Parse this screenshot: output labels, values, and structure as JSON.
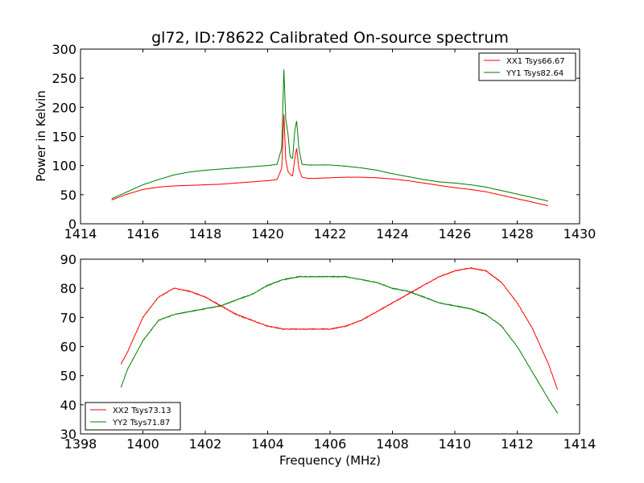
{
  "chart_data": [
    {
      "type": "line",
      "title": "gl72, ID:78622 Calibrated On-source spectrum",
      "xlabel": "",
      "ylabel": "Power in Kelvin",
      "xlim": [
        1414,
        1430
      ],
      "ylim": [
        0,
        300
      ],
      "xticks": [
        "1414",
        "1416",
        "1418",
        "1420",
        "1422",
        "1424",
        "1426",
        "1428",
        "1430"
      ],
      "yticks": [
        "0",
        "50",
        "100",
        "150",
        "200",
        "250",
        "300"
      ],
      "grid": false,
      "legend_position": "top-right",
      "series": [
        {
          "name": "XX1 Tsys66.67",
          "color": "#ff0000",
          "x": [
            1415.0,
            1415.5,
            1416.0,
            1416.5,
            1417.0,
            1417.5,
            1418.0,
            1418.5,
            1419.0,
            1419.5,
            1420.0,
            1420.3,
            1420.45,
            1420.52,
            1420.58,
            1420.65,
            1420.72,
            1420.8,
            1420.87,
            1420.93,
            1421.0,
            1421.1,
            1421.3,
            1421.5,
            1422.0,
            1422.5,
            1423.0,
            1423.5,
            1424.0,
            1424.5,
            1425.0,
            1425.5,
            1426.0,
            1426.5,
            1427.0,
            1427.5,
            1428.0,
            1428.5,
            1429.0
          ],
          "values": [
            41,
            51,
            59,
            63,
            65,
            66,
            67,
            68,
            70,
            72,
            74,
            76,
            95,
            188,
            110,
            90,
            85,
            82,
            112,
            130,
            95,
            80,
            78,
            78,
            79,
            80,
            80,
            79,
            77,
            74,
            70,
            66,
            62,
            59,
            55,
            49,
            43,
            37,
            31
          ]
        },
        {
          "name": "YY1 Tsys82.64",
          "color": "#007f00",
          "x": [
            1415.0,
            1415.5,
            1416.0,
            1416.5,
            1417.0,
            1417.5,
            1418.0,
            1418.5,
            1419.0,
            1419.5,
            1420.0,
            1420.3,
            1420.45,
            1420.52,
            1420.58,
            1420.65,
            1420.72,
            1420.8,
            1420.87,
            1420.93,
            1421.0,
            1421.1,
            1421.3,
            1421.5,
            1422.0,
            1422.5,
            1423.0,
            1423.5,
            1424.0,
            1424.5,
            1425.0,
            1425.5,
            1426.0,
            1426.5,
            1427.0,
            1427.5,
            1428.0,
            1428.5,
            1429.0
          ],
          "values": [
            43,
            55,
            67,
            76,
            84,
            89,
            92,
            94,
            96,
            98,
            100,
            102,
            130,
            265,
            180,
            155,
            115,
            112,
            160,
            177,
            130,
            102,
            101,
            101,
            101,
            99,
            96,
            92,
            86,
            81,
            76,
            72,
            70,
            67,
            63,
            57,
            51,
            45,
            39
          ]
        }
      ]
    },
    {
      "type": "line",
      "title": "",
      "xlabel": "Frequency (MHz)",
      "ylabel": "",
      "xlim": [
        1398,
        1414
      ],
      "ylim": [
        30,
        90
      ],
      "xticks": [
        "1398",
        "1400",
        "1402",
        "1404",
        "1406",
        "1408",
        "1410",
        "1412",
        "1414"
      ],
      "yticks": [
        "30",
        "40",
        "50",
        "60",
        "70",
        "80",
        "90"
      ],
      "grid": false,
      "legend_position": "bottom-left",
      "series": [
        {
          "name": "XX2 Tsys73.13",
          "color": "#ff0000",
          "x": [
            1399.3,
            1399.5,
            1400.0,
            1400.5,
            1401.0,
            1401.5,
            1402.0,
            1402.5,
            1403.0,
            1403.5,
            1404.0,
            1404.5,
            1405.0,
            1405.5,
            1406.0,
            1406.5,
            1407.0,
            1407.5,
            1408.0,
            1408.5,
            1409.0,
            1409.5,
            1410.0,
            1410.5,
            1411.0,
            1411.5,
            1412.0,
            1412.5,
            1413.0,
            1413.3
          ],
          "values": [
            54,
            58,
            70,
            77,
            80,
            79,
            77,
            74,
            71,
            69,
            67,
            66,
            66,
            66,
            66,
            67,
            69,
            72,
            75,
            78,
            81,
            84,
            86,
            87,
            86,
            82,
            75,
            66,
            54,
            45
          ]
        },
        {
          "name": "YY2 Tsys71.87",
          "color": "#007f00",
          "x": [
            1399.3,
            1399.5,
            1400.0,
            1400.5,
            1401.0,
            1401.5,
            1402.0,
            1402.5,
            1403.0,
            1403.5,
            1404.0,
            1404.5,
            1405.0,
            1405.5,
            1406.0,
            1406.5,
            1407.0,
            1407.5,
            1408.0,
            1408.5,
            1409.0,
            1409.5,
            1410.0,
            1410.5,
            1411.0,
            1411.5,
            1412.0,
            1412.5,
            1413.0,
            1413.3
          ],
          "values": [
            46,
            52,
            62,
            69,
            71,
            72,
            73,
            74,
            76,
            78,
            81,
            83,
            84,
            84,
            84,
            84,
            83,
            82,
            80,
            79,
            77,
            75,
            74,
            73,
            71,
            67,
            60,
            51,
            42,
            37
          ]
        }
      ]
    }
  ]
}
